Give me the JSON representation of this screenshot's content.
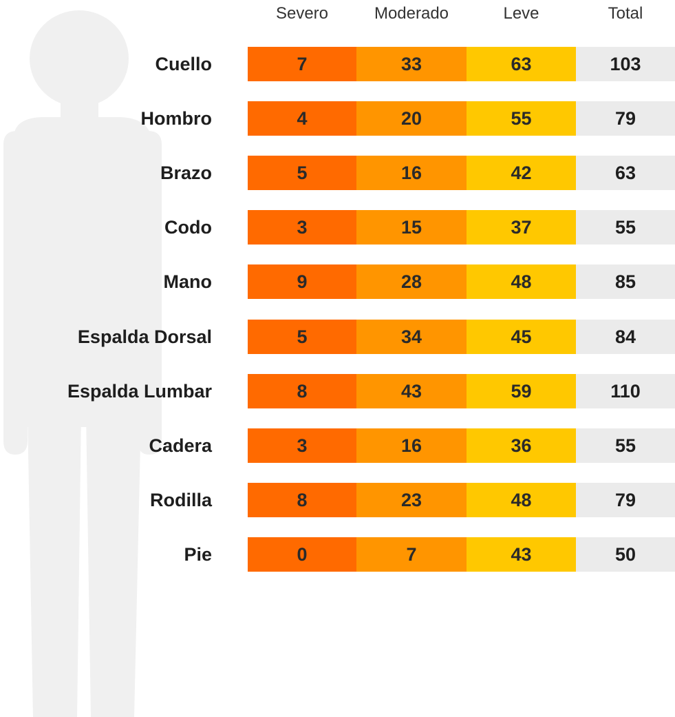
{
  "chart_data": {
    "type": "table",
    "columns": [
      "Severo",
      "Moderado",
      "Leve",
      "Total"
    ],
    "column_colors": [
      "#ff6a00",
      "#ff9500",
      "#ffc800",
      "#ebebeb"
    ],
    "rows": [
      {
        "label": "Cuello",
        "values": [
          7,
          33,
          63,
          103
        ]
      },
      {
        "label": "Hombro",
        "values": [
          4,
          20,
          55,
          79
        ]
      },
      {
        "label": "Brazo",
        "values": [
          5,
          16,
          42,
          63
        ]
      },
      {
        "label": "Codo",
        "values": [
          3,
          15,
          37,
          55
        ]
      },
      {
        "label": "Mano",
        "values": [
          9,
          28,
          48,
          85
        ]
      },
      {
        "label": "Espalda Dorsal",
        "values": [
          5,
          34,
          45,
          84
        ]
      },
      {
        "label": "Espalda Lumbar",
        "values": [
          8,
          43,
          59,
          110
        ]
      },
      {
        "label": "Cadera",
        "values": [
          3,
          16,
          36,
          55
        ]
      },
      {
        "label": "Rodilla",
        "values": [
          8,
          23,
          48,
          79
        ]
      },
      {
        "label": "Pie",
        "values": [
          0,
          7,
          43,
          50
        ]
      }
    ]
  },
  "background": {
    "icon": "person-silhouette-icon",
    "color": "#f0f0f0"
  }
}
